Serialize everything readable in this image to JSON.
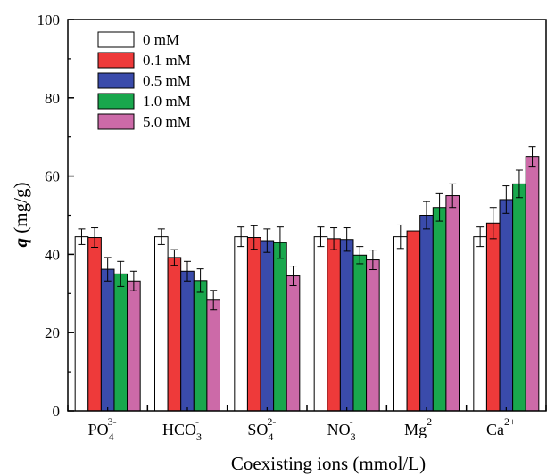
{
  "chart_data": {
    "type": "bar",
    "title": "",
    "xlabel": "Coexisting ions (mmol/L)",
    "ylabel_italic": "q",
    "ylabel_rest": " (mg/g)",
    "ylim": [
      0,
      100
    ],
    "yticks": [
      0,
      20,
      40,
      60,
      80,
      100
    ],
    "legend_position": "top-left",
    "categories": [
      {
        "base": "PO",
        "sub": "4",
        "sup": "3-"
      },
      {
        "base": "HCO",
        "sub": "3",
        "sup": "-"
      },
      {
        "base": "SO",
        "sub": "4",
        "sup": "2-"
      },
      {
        "base": "NO",
        "sub": "3",
        "sup": "-"
      },
      {
        "base": "Mg",
        "sub": "",
        "sup": "2+"
      },
      {
        "base": "Ca",
        "sub": "",
        "sup": "2+"
      }
    ],
    "series": [
      {
        "name": "0 mM",
        "color": "#ffffff",
        "values": [
          44.5,
          44.5,
          44.5,
          44.5,
          44.5,
          44.5
        ],
        "errors": [
          2.0,
          2.0,
          2.5,
          2.5,
          3.0,
          2.5
        ]
      },
      {
        "name": "0.1 mM",
        "color": "#ee3a3a",
        "values": [
          44.3,
          39.2,
          44.3,
          44.0,
          46.0,
          48.0
        ],
        "errors": [
          2.5,
          2.0,
          3.0,
          2.8,
          0,
          4.0
        ]
      },
      {
        "name": "0.5 mM",
        "color": "#3a4bab",
        "values": [
          36.2,
          35.7,
          43.5,
          43.8,
          50.0,
          54.0
        ],
        "errors": [
          3.0,
          2.5,
          3.0,
          3.0,
          3.5,
          3.5
        ]
      },
      {
        "name": "1.0 mM",
        "color": "#19a74d",
        "values": [
          35.0,
          33.3,
          43.0,
          39.8,
          52.0,
          58.0
        ],
        "errors": [
          3.2,
          3.0,
          4.0,
          2.2,
          3.5,
          3.5
        ]
      },
      {
        "name": "5.0 mM",
        "color": "#cc6aa8",
        "values": [
          33.2,
          28.3,
          34.5,
          38.6,
          55.0,
          65.0
        ],
        "errors": [
          2.5,
          2.5,
          2.5,
          2.5,
          3.0,
          2.5
        ]
      }
    ]
  }
}
